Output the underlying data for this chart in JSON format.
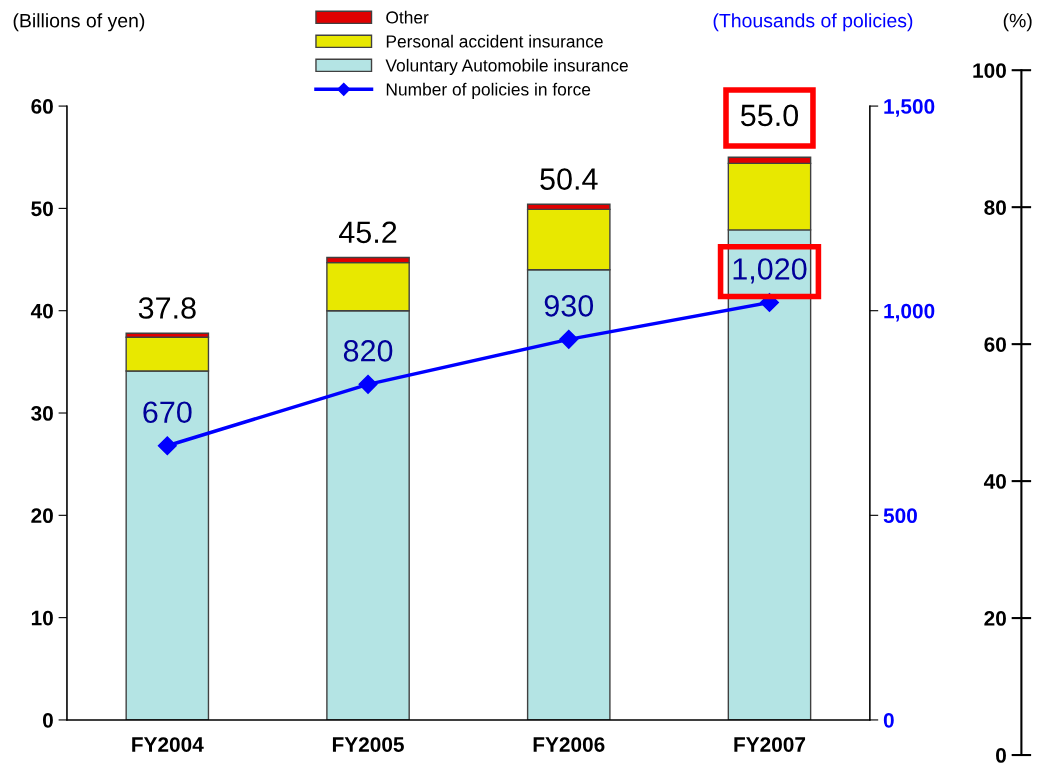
{
  "chart_data": {
    "type": "bar",
    "stacked": true,
    "categories": [
      "FY2004",
      "FY2005",
      "FY2006",
      "FY2007"
    ],
    "ylabel": "(Billions of yen)",
    "y2label": "(Thousands of policies)",
    "y3label": "(%)",
    "series": [
      {
        "name": "Voluntary Automobile insurance",
        "color": "#b4e4e4",
        "values": [
          34.1,
          40.0,
          44.0,
          47.9
        ]
      },
      {
        "name": "Personal accident insurance",
        "color": "#e8e800",
        "values": [
          3.3,
          4.7,
          5.9,
          6.5
        ]
      },
      {
        "name": "Other",
        "color": "#e00000",
        "values": [
          0.4,
          0.5,
          0.5,
          0.6
        ]
      },
      {
        "name": "Number of policies in force",
        "type": "line",
        "axis": "y2",
        "color": "#0000ff",
        "marker": "diamond",
        "values": [
          670,
          820,
          930,
          1020
        ],
        "value_labels": [
          "670",
          "820",
          "930",
          "1,020"
        ]
      }
    ],
    "totals": [
      "37.8",
      "45.2",
      "50.4",
      "55.0"
    ],
    "ylim": [
      0,
      60
    ],
    "yticks": [
      0,
      10,
      20,
      30,
      40,
      50,
      60
    ],
    "y2lim": [
      0,
      1500
    ],
    "y2ticks": [
      0,
      500,
      {
        "value": 1000,
        "label": "1,000"
      },
      {
        "value": 1500,
        "label": "1,500"
      }
    ],
    "y3lim": [
      0,
      100
    ],
    "y3ticks": [
      0,
      20,
      40,
      60,
      80,
      100
    ],
    "grid": false,
    "legend": "top"
  }
}
